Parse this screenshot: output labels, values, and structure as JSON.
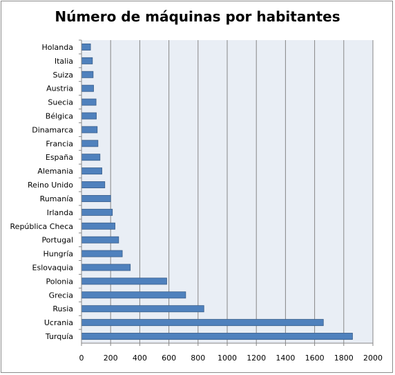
{
  "chart_data": {
    "type": "bar",
    "orientation": "horizontal",
    "title": "Número de máquinas por habitantes",
    "xlabel": "",
    "ylabel": "",
    "xlim": [
      0,
      2000
    ],
    "xticks": [
      0,
      200,
      400,
      600,
      800,
      1000,
      1200,
      1400,
      1600,
      1800,
      2000
    ],
    "grid": true,
    "legend": "none",
    "bar_color": "#4f81bd",
    "bar_border_color": "#385d8a",
    "plot_background": "#e9eef5",
    "categories": [
      "Holanda",
      "Italia",
      "Suiza",
      "Austria",
      "Suecia",
      "Bélgica",
      "Dinamarca",
      "Francia",
      "España",
      "Alemania",
      "Reino Unido",
      "Rumanía",
      "Irlanda",
      "República Checa",
      "Portugal",
      "Hungría",
      "Eslovaquia",
      "Polonia",
      "Grecia",
      "Rusia",
      "Ucrania",
      "Turquía"
    ],
    "values": [
      62,
      75,
      80,
      83,
      100,
      102,
      108,
      113,
      127,
      140,
      160,
      200,
      212,
      230,
      255,
      280,
      335,
      585,
      715,
      840,
      1660,
      1860
    ]
  }
}
